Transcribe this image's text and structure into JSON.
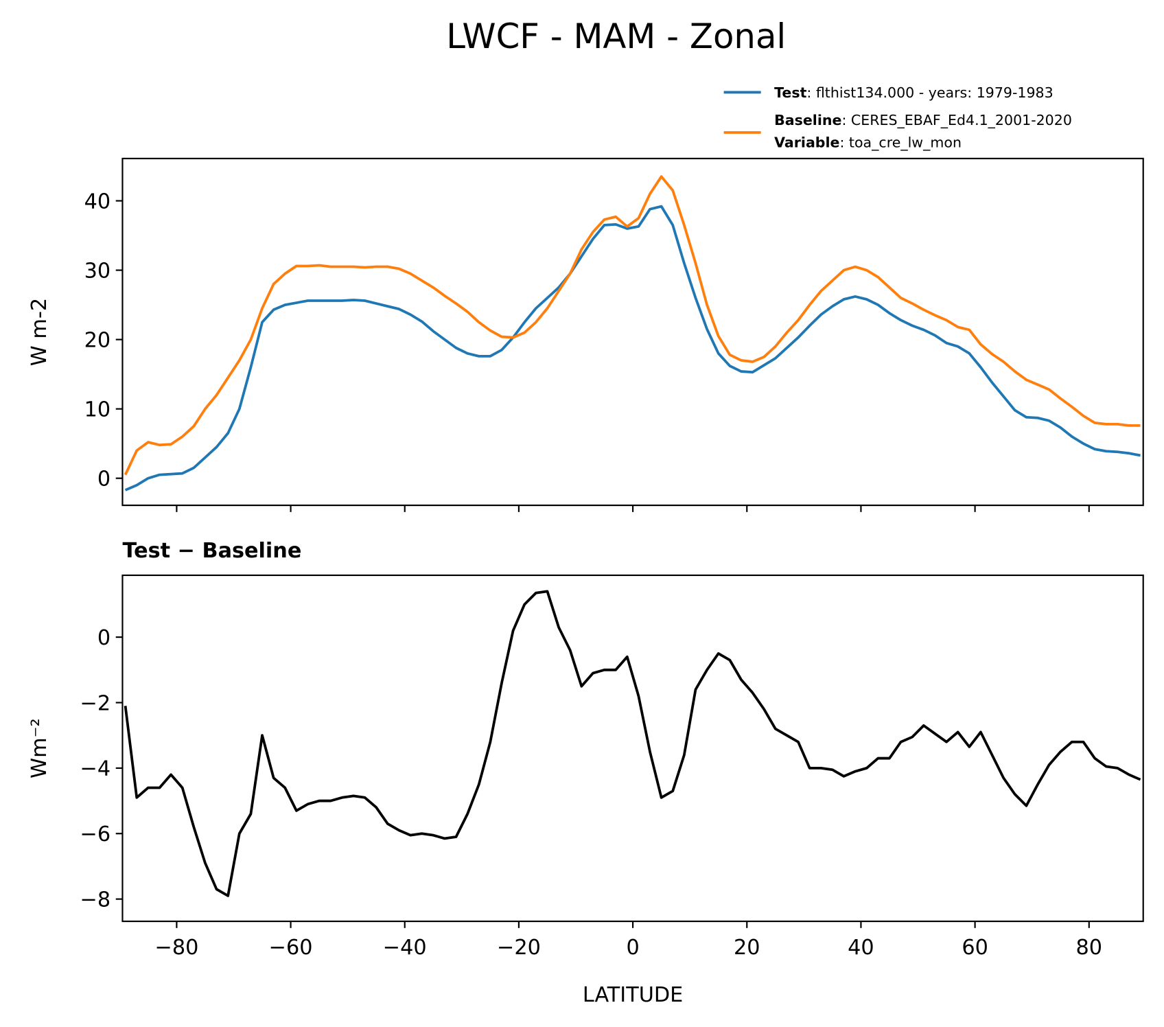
{
  "title": "LWCF - MAM - Zonal",
  "chart_data": [
    {
      "type": "line",
      "ylabel": "W m-2",
      "xlim": [
        -89.5,
        89.5
      ],
      "ylim": [
        -3.9,
        46.1
      ],
      "xticks": [
        -80,
        -60,
        -40,
        -20,
        0,
        20,
        40,
        60,
        80
      ],
      "yticks": [
        0,
        10,
        20,
        30,
        40
      ],
      "x": [
        -89,
        -87,
        -85,
        -83,
        -81,
        -79,
        -77,
        -75,
        -73,
        -71,
        -69,
        -67,
        -65,
        -63,
        -61,
        -59,
        -57,
        -55,
        -53,
        -51,
        -49,
        -47,
        -45,
        -43,
        -41,
        -39,
        -37,
        -35,
        -33,
        -31,
        -29,
        -27,
        -25,
        -23,
        -21,
        -19,
        -17,
        -15,
        -13,
        -11,
        -9,
        -7,
        -5,
        -3,
        -1,
        1,
        3,
        5,
        7,
        9,
        11,
        13,
        15,
        17,
        19,
        21,
        23,
        25,
        27,
        29,
        31,
        33,
        35,
        37,
        39,
        41,
        43,
        45,
        47,
        49,
        51,
        53,
        55,
        57,
        59,
        61,
        63,
        65,
        67,
        69,
        71,
        73,
        75,
        77,
        79,
        81,
        83,
        85,
        87,
        89
      ],
      "series": [
        {
          "name": "Test",
          "description": ": flthist134.000 - years: 1979-1983",
          "color": "#1f77b4",
          "values": [
            -1.7,
            -1.0,
            0,
            0.5,
            0.6,
            0.7,
            1.5,
            3,
            4.5,
            6.5,
            10,
            16,
            22.5,
            24.3,
            25,
            25.3,
            25.6,
            25.6,
            25.6,
            25.6,
            25.7,
            25.6,
            25.2,
            24.8,
            24.4,
            23.6,
            22.6,
            21.2,
            20,
            18.8,
            18,
            17.6,
            17.6,
            18.5,
            20.3,
            22.5,
            24.5,
            26,
            27.5,
            29.5,
            32,
            34.5,
            36.5,
            36.6,
            36,
            36.3,
            38.8,
            39.2,
            36.5,
            31,
            26,
            21.5,
            18,
            16.2,
            15.4,
            15.3,
            16.3,
            17.3,
            18.8,
            20.3,
            22,
            23.6,
            24.8,
            25.8,
            26.2,
            25.8,
            25,
            23.8,
            22.8,
            22,
            21.4,
            20.6,
            19.5,
            19,
            18,
            16,
            13.8,
            11.8,
            9.8,
            8.8,
            8.7,
            8.3,
            7.3,
            6,
            5,
            4.2,
            3.9,
            3.8,
            3.6,
            3.3
          ]
        },
        {
          "name": "Baseline",
          "description": ": CERES_EBAF_Ed4.1_2001-2020",
          "variable_name": "Variable",
          "variable": ": toa_cre_lw_mon",
          "color": "#ff7f0e",
          "values": [
            0.5,
            4,
            5.2,
            4.8,
            4.9,
            6,
            7.5,
            10,
            12,
            14.5,
            17,
            20,
            24.5,
            28,
            29.5,
            30.6,
            30.6,
            30.7,
            30.5,
            30.5,
            30.5,
            30.4,
            30.5,
            30.5,
            30.2,
            29.5,
            28.5,
            27.5,
            26.3,
            25.2,
            24,
            22.5,
            21.3,
            20.4,
            20.3,
            21,
            22.5,
            24.5,
            27,
            29.5,
            33,
            35.5,
            37.3,
            37.7,
            36.3,
            37.5,
            41,
            43.5,
            41.5,
            36.5,
            31,
            25,
            20.5,
            17.8,
            17,
            16.8,
            17.5,
            19,
            21,
            22.8,
            25,
            27,
            28.5,
            30,
            30.5,
            30,
            29,
            27.5,
            26,
            25.2,
            24.3,
            23.5,
            22.8,
            21.8,
            21.4,
            19.3,
            17.9,
            16.8,
            15.4,
            14.2,
            13.5,
            12.8,
            11.5,
            10.3,
            9,
            8,
            7.8,
            7.8,
            7.6,
            7.6
          ]
        }
      ]
    },
    {
      "type": "line",
      "title": "Test − Baseline",
      "xlabel": "LATITUDE",
      "ylabel": "Wm⁻²",
      "xlim": [
        -89.5,
        89.5
      ],
      "ylim": [
        -8.68,
        1.89
      ],
      "xticks": [
        {
          "value": -80,
          "label": "−80"
        },
        {
          "value": -60,
          "label": "−60"
        },
        {
          "value": -40,
          "label": "−40"
        },
        {
          "value": -20,
          "label": "−20"
        },
        0,
        20,
        40,
        60,
        80
      ],
      "yticks": [
        {
          "value": -8,
          "label": "−8"
        },
        {
          "value": -6,
          "label": "−6"
        },
        {
          "value": -4,
          "label": "−4"
        },
        {
          "value": -2,
          "label": "−2"
        },
        0
      ],
      "x": [
        -89,
        -87,
        -85,
        -83,
        -81,
        -79,
        -77,
        -75,
        -73,
        -71,
        -69,
        -67,
        -65,
        -63,
        -61,
        -59,
        -57,
        -55,
        -53,
        -51,
        -49,
        -47,
        -45,
        -43,
        -41,
        -39,
        -37,
        -35,
        -33,
        -31,
        -29,
        -27,
        -25,
        -23,
        -21,
        -19,
        -17,
        -15,
        -13,
        -11,
        -9,
        -7,
        -5,
        -3,
        -1,
        1,
        3,
        5,
        7,
        9,
        11,
        13,
        15,
        17,
        19,
        21,
        23,
        25,
        27,
        29,
        31,
        33,
        35,
        37,
        39,
        41,
        43,
        45,
        47,
        49,
        51,
        53,
        55,
        57,
        59,
        61,
        63,
        65,
        67,
        69,
        71,
        73,
        75,
        77,
        79,
        81,
        83,
        85,
        87,
        89
      ],
      "series": [
        {
          "color": "#000000",
          "values": [
            -2.1,
            -4.9,
            -4.6,
            -4.6,
            -4.2,
            -4.6,
            -5.8,
            -6.9,
            -7.7,
            -7.9,
            -6,
            -5.4,
            -3,
            -4.3,
            -4.6,
            -5.3,
            -5.1,
            -5.0,
            -5.0,
            -4.9,
            -4.85,
            -4.9,
            -5.2,
            -5.7,
            -5.9,
            -6.05,
            -6.0,
            -6.05,
            -6.15,
            -6.1,
            -5.4,
            -4.5,
            -3.2,
            -1.4,
            0.2,
            1.0,
            1.35,
            1.4,
            0.3,
            -0.4,
            -1.5,
            -1.1,
            -1.0,
            -1.0,
            -0.6,
            -1.8,
            -3.5,
            -4.9,
            -4.7,
            -3.6,
            -1.6,
            -1.0,
            -0.5,
            -0.7,
            -1.3,
            -1.7,
            -2.2,
            -2.8,
            -3.0,
            -3.2,
            -4.0,
            -4.0,
            -4.05,
            -4.25,
            -4.1,
            -4.0,
            -3.7,
            -3.7,
            -3.2,
            -3.05,
            -2.7,
            -2.95,
            -3.2,
            -2.9,
            -3.35,
            -2.9,
            -3.6,
            -4.3,
            -4.8,
            -5.15,
            -4.5,
            -3.9,
            -3.5,
            -3.2,
            -3.2,
            -3.7,
            -3.95,
            -4.0,
            -4.2,
            -4.35
          ]
        }
      ]
    }
  ]
}
